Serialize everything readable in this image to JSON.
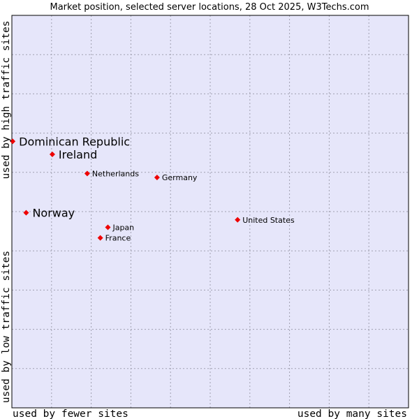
{
  "chart_data": {
    "type": "scatter",
    "title": "Market position, selected server locations, 28 Oct 2025, W3Techs.com",
    "xlabel_left": "used by fewer sites",
    "xlabel_right": "used by many sites",
    "ylabel_top": "used by high traffic sites",
    "ylabel_bottom": "used by low traffic sites",
    "xlim": [
      0,
      100
    ],
    "ylim": [
      0,
      100
    ],
    "grid": true,
    "colors": {
      "plot_bg": "#e6e6fa",
      "grid": "#a0a0b0",
      "point": "#ee0000",
      "frame": "#000000"
    },
    "points": [
      {
        "label": "Dominican Republic",
        "x": 0.2,
        "y": 67.9,
        "size": "large"
      },
      {
        "label": "Ireland",
        "x": 10.2,
        "y": 64.6,
        "size": "large"
      },
      {
        "label": "Netherlands",
        "x": 19.0,
        "y": 59.7,
        "size": "small"
      },
      {
        "label": "Germany",
        "x": 36.6,
        "y": 58.7,
        "size": "small"
      },
      {
        "label": "Norway",
        "x": 3.6,
        "y": 49.7,
        "size": "large"
      },
      {
        "label": "United States",
        "x": 56.9,
        "y": 47.9,
        "size": "small"
      },
      {
        "label": "Japan",
        "x": 24.2,
        "y": 46.0,
        "size": "small"
      },
      {
        "label": "France",
        "x": 22.3,
        "y": 43.3,
        "size": "small"
      }
    ]
  }
}
